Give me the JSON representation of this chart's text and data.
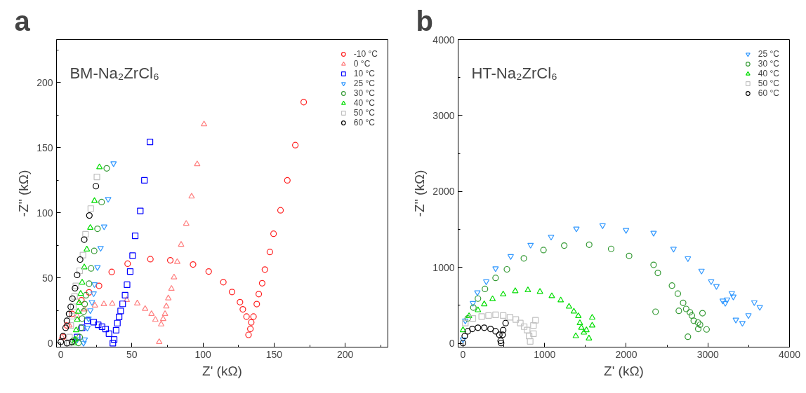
{
  "chart_data": [
    {
      "type": "scatter",
      "title": "a",
      "annotations": [
        "BM-Na₂ZrCl₆"
      ],
      "xlabel": "Z' (kΩ)",
      "ylabel": "-Z'' (kΩ)",
      "xlim": [
        -3,
        230
      ],
      "ylim": [
        -3,
        233
      ],
      "xticks": [
        0,
        {
          "value": 25,
          "label": null
        },
        50,
        {
          "value": 75,
          "label": null
        },
        100,
        {
          "value": 125,
          "label": null
        },
        150,
        {
          "value": 175,
          "label": null
        },
        200,
        {
          "value": 225,
          "label": null
        }
      ],
      "yticks": [
        0,
        {
          "value": 25,
          "label": null
        },
        50,
        {
          "value": 75,
          "label": null
        },
        100,
        {
          "value": 125,
          "label": null
        },
        150,
        {
          "value": 175,
          "label": null
        },
        200,
        {
          "value": 225,
          "label": null
        }
      ],
      "grid": false,
      "legend": "top right",
      "series": [
        {
          "name": "-10 °C",
          "color": "#ff2020",
          "marker": "circle",
          "x": [
            1.6,
            4.3,
            7.9,
            14.5,
            19.9,
            26.9,
            35.8,
            47,
            63,
            77,
            93,
            104,
            114.3,
            120.4,
            126,
            128,
            130.6,
            132,
            133.3,
            133.9,
            135.5,
            137.8,
            139.2,
            141.6,
            143.5,
            147,
            149.6,
            154.5,
            159.3,
            164.9,
            170.8
          ],
          "values": [
            4.8,
            13.6,
            22.5,
            33,
            39,
            44,
            54.7,
            61,
            64.5,
            63.6,
            60.4,
            55,
            46.8,
            39.3,
            31.5,
            26,
            20.4,
            6.4,
            11,
            16,
            20.4,
            30,
            37.7,
            46,
            56.5,
            70,
            84,
            102,
            125,
            152,
            185
          ]
        },
        {
          "name": "0 °C",
          "color": "#ff8080",
          "marker": "triangle",
          "x": [
            0.7,
            6.1,
            11.5,
            16.7,
            24,
            30.3,
            36.2,
            46.4,
            53.8,
            59.3,
            63.8,
            66.5,
            69.2,
            70.6,
            72,
            73.3,
            74.2,
            75.6,
            77.8,
            79.6,
            81.9,
            84.6,
            88.2,
            92,
            95.9,
            100.7
          ],
          "values": [
            4.8,
            13.6,
            21,
            26,
            29,
            30,
            30.4,
            33.2,
            30.6,
            26.4,
            22.5,
            18,
            1,
            14.5,
            18.6,
            22.5,
            28.3,
            34.5,
            41.8,
            50.6,
            62.4,
            75.6,
            91.7,
            112.6,
            137.4,
            168
          ]
        },
        {
          "name": "10 °C",
          "color": "#0000ff",
          "marker": "square",
          "x": [
            11.5,
            15,
            18.7,
            23.1,
            26.3,
            29,
            31.5,
            33.9,
            36.6,
            37.5,
            38.9,
            39.8,
            41,
            42.1,
            43.5,
            45.2,
            46.6,
            48.8,
            50.5,
            52.3,
            55.9,
            58.8,
            62.7
          ],
          "values": [
            4.7,
            11.8,
            17.2,
            16.2,
            14.1,
            12.7,
            10.9,
            7.3,
            0,
            2.8,
            10,
            15.4,
            20.2,
            24.8,
            30.2,
            36.8,
            44.9,
            55,
            67.2,
            82.4,
            101.5,
            125,
            154.4
          ]
        },
        {
          "name": "25 °C",
          "color": "#3399ff",
          "marker": "triangle_down",
          "x": [
            11.5,
            16,
            16.8,
            18.7,
            19.5,
            20.8,
            21.9,
            23.1,
            23.7,
            25.8,
            28,
            30.5,
            33.3,
            37.1
          ],
          "values": [
            2.8,
            0.2,
            2.8,
            11.8,
            18.9,
            25.2,
            31.5,
            38.2,
            45.2,
            58.3,
            73,
            89.5,
            110.6,
            138
          ]
        },
        {
          "name": "30 °C",
          "color": "#339933",
          "marker": "circle",
          "x": [
            8.8,
            12.4,
            13.3,
            14.2,
            15,
            16.1,
            16.8,
            17.7,
            19.9,
            21.3,
            23.5,
            25.8,
            28.7,
            32.3
          ],
          "values": [
            2,
            0.2,
            4.7,
            11.8,
            18.9,
            24.3,
            30,
            36.8,
            45.7,
            57.4,
            70.8,
            87.8,
            108.3,
            134.2
          ]
        },
        {
          "name": "40 °C",
          "color": "#00dd00",
          "marker": "triangle",
          "x": [
            9.3,
            10,
            10.8,
            11.5,
            12.2,
            12.9,
            14,
            15,
            16.5,
            18.3,
            20.8,
            23.7,
            27.2
          ],
          "values": [
            0,
            2.8,
            10,
            18,
            24.3,
            31.1,
            38,
            46.6,
            58.3,
            72,
            88.6,
            109.2,
            135.1
          ]
        },
        {
          "name": "50 °C",
          "color": "#c0c0c0",
          "marker": "square",
          "x": [
            5.8,
            6.1,
            7,
            7.9,
            8.8,
            9.7,
            10.6,
            13.3,
            15.6,
            17.4,
            21.1,
            25.4
          ],
          "values": [
            0.2,
            4.7,
            13.6,
            20.8,
            27.9,
            35.9,
            44,
            55.6,
            67.6,
            83.6,
            103.3,
            127.6
          ]
        },
        {
          "name": "60 °C",
          "color": "#000000",
          "marker": "circle",
          "x": [
            0,
            1.6,
            3.4,
            4.3,
            5.8,
            7,
            8.2,
            10,
            11.5,
            13.6,
            16.5,
            20.1,
            24.7,
            4.3,
            7.9
          ],
          "values": [
            1,
            5.5,
            11.8,
            17.2,
            22.5,
            27.9,
            34.2,
            42.2,
            52.4,
            64.2,
            79.5,
            98,
            120.5,
            0,
            1
          ]
        }
      ]
    },
    {
      "type": "scatter",
      "title": "b",
      "annotations": [
        "HT-Na₂ZrCl₆"
      ],
      "xlabel": "Z' (kΩ)",
      "ylabel": "-Z'' (kΩ)",
      "xlim": [
        -60,
        4000
      ],
      "ylim": [
        -50,
        4000
      ],
      "xticks": [
        0,
        {
          "value": 500,
          "label": null
        },
        1000,
        {
          "value": 1500,
          "label": null
        },
        2000,
        {
          "value": 2500,
          "label": null
        },
        3000,
        {
          "value": 3500,
          "label": null
        },
        4000
      ],
      "yticks": [
        0,
        {
          "value": 500,
          "label": null
        },
        1000,
        {
          "value": 1500,
          "label": null
        },
        2000,
        {
          "value": 2500,
          "label": null
        },
        3000,
        {
          "value": 3500,
          "label": null
        },
        4000
      ],
      "grid": false,
      "legend": "top right",
      "series": [
        {
          "name": "25 °C",
          "color": "#3399ff",
          "marker": "triangle_down",
          "x": [
            0,
            28,
            121,
            176,
            285,
            399,
            584,
            828,
            1079,
            1389,
            1710,
            1997,
            2335,
            2579,
            2755,
            2922,
            3040,
            3105,
            3293,
            3312,
            3235,
            3182,
            3213,
            3569,
            3636,
            3497,
            3343,
            3423
          ],
          "values": [
            50,
            298,
            530,
            670,
            815,
            986,
            1147,
            1296,
            1402,
            1510,
            1553,
            1491,
            1454,
            1244,
            1119,
            955,
            816,
            753,
            660,
            614,
            577,
            561,
            530,
            540,
            477,
            369,
            310,
            267
          ]
        },
        {
          "name": "30 °C",
          "color": "#339933",
          "marker": "circle",
          "x": [
            58,
            127,
            183,
            269,
            399,
            538,
            745,
            986,
            1240,
            1546,
            1815,
            2035,
            2335,
            2387,
            2560,
            2632,
            2697,
            2734,
            2780,
            2804,
            2827,
            2879,
            2904,
            2882,
            2984,
            2934,
            2644,
            2359,
            2755
          ],
          "values": [
            328,
            471,
            589,
            716,
            862,
            974,
            1119,
            1228,
            1287,
            1299,
            1244,
            1151,
            1033,
            927,
            760,
            654,
            533,
            453,
            409,
            366,
            298,
            273,
            245,
            189,
            183,
            397,
            428,
            416,
            87
          ]
        },
        {
          "name": "40 °C",
          "color": "#00dd00",
          "marker": "triangle",
          "x": [
            0,
            74,
            183,
            260,
            362,
            492,
            640,
            795,
            943,
            1088,
            1197,
            1299,
            1358,
            1413,
            1432,
            1450,
            1481,
            1583,
            1583,
            1543,
            1382,
            1512
          ],
          "values": [
            174,
            360,
            437,
            515,
            583,
            645,
            688,
            700,
            679,
            623,
            567,
            484,
            419,
            360,
            267,
            205,
            142,
            338,
            235,
            65,
            96,
            174
          ]
        },
        {
          "name": "50 °C",
          "color": "#c0c0c0",
          "marker": "square",
          "x": [
            28,
            121,
            229,
            313,
            399,
            492,
            575,
            647,
            702,
            749,
            786,
            810,
            823,
            863,
            888,
            863
          ],
          "values": [
            267,
            328,
            353,
            366,
            375,
            366,
            344,
            313,
            267,
            220,
            174,
            96,
            25,
            127,
            304,
            235
          ]
        },
        {
          "name": "60 °C",
          "color": "#000000",
          "marker": "circle",
          "x": [
            0,
            21,
            58,
            114,
            183,
            260,
            337,
            399,
            445,
            461,
            467,
            492,
            522,
            485
          ],
          "values": [
            3,
            96,
            158,
            189,
            205,
            205,
            189,
            158,
            112,
            34,
            3,
            174,
            267,
            112
          ]
        }
      ]
    }
  ]
}
